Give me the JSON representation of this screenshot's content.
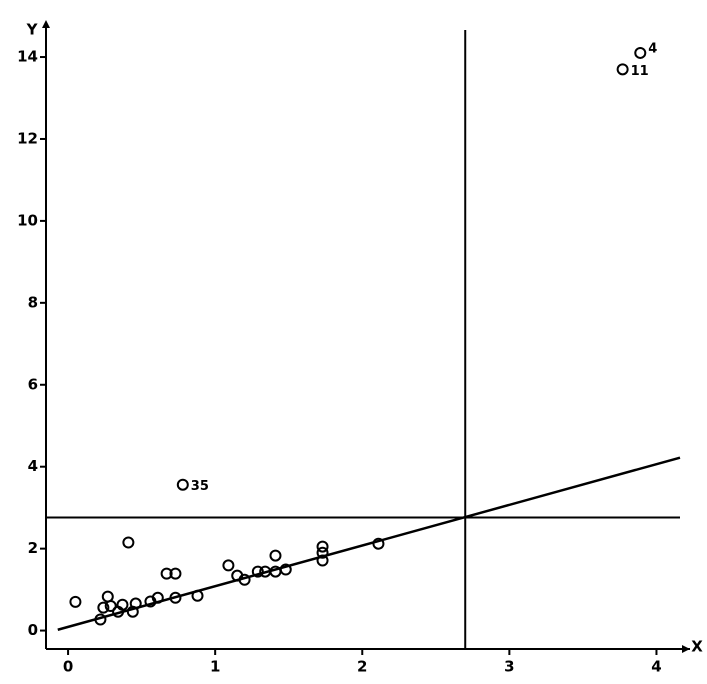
{
  "chart_data": {
    "type": "scatter",
    "x_label": "X",
    "y_label": "Y",
    "x": [
      0.05,
      0.22,
      0.24,
      0.27,
      0.29,
      0.34,
      0.37,
      0.41,
      0.44,
      0.46,
      0.56,
      0.61,
      0.67,
      0.73,
      0.73,
      0.78,
      0.88,
      1.09,
      1.15,
      1.2,
      1.29,
      1.34,
      1.41,
      1.41,
      1.48,
      1.73,
      1.73,
      1.73,
      2.11,
      3.77,
      3.89
    ],
    "values": [
      0.7,
      0.27,
      0.56,
      0.83,
      0.6,
      0.46,
      0.63,
      2.15,
      0.46,
      0.66,
      0.71,
      0.8,
      1.39,
      1.39,
      0.8,
      3.56,
      0.85,
      1.59,
      1.34,
      1.24,
      1.44,
      1.44,
      1.83,
      1.44,
      1.49,
      2.05,
      1.9,
      1.71,
      2.12,
      13.7,
      14.1
    ],
    "point_labels": [
      null,
      null,
      null,
      null,
      null,
      null,
      null,
      null,
      null,
      null,
      null,
      null,
      null,
      null,
      null,
      "35",
      null,
      null,
      null,
      null,
      null,
      null,
      null,
      null,
      null,
      null,
      null,
      null,
      null,
      "11",
      "4"
    ],
    "regression_line": {
      "x": [
        -0.07,
        4.16
      ],
      "y": [
        0.02,
        4.22
      ]
    },
    "vline": 2.7,
    "hline": 2.76,
    "xlim": [
      -0.15,
      4.16
    ],
    "ylim": [
      -0.45,
      14.66
    ],
    "xticks": [
      0,
      1,
      2,
      3,
      4
    ],
    "yticks": [
      0,
      2,
      4,
      6,
      8,
      10,
      12,
      14
    ],
    "color": "#000000"
  }
}
